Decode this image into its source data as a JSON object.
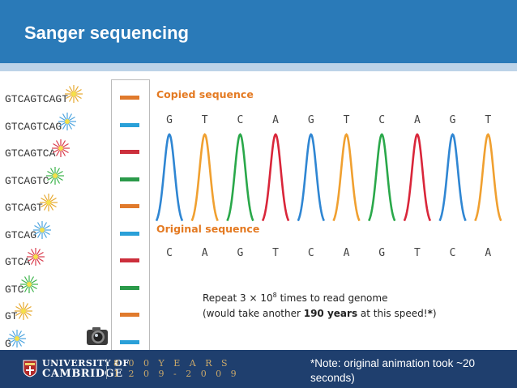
{
  "slide": {
    "title": "Sanger sequencing"
  },
  "fragments": [
    {
      "text": "GTCAGTCAGT",
      "star_color": "#e6a82e"
    },
    {
      "text": "GTCAGTCAG",
      "star_color": "#4aa3df"
    },
    {
      "text": "GTCAGTCA",
      "star_color": "#d9394a"
    },
    {
      "text": "GTCAGTC",
      "star_color": "#3bb34a"
    },
    {
      "text": "GTCAGT",
      "star_color": "#e6a82e"
    },
    {
      "text": "GTCAG",
      "star_color": "#4aa3df"
    },
    {
      "text": "GTCA",
      "star_color": "#d9394a"
    },
    {
      "text": "GTC",
      "star_color": "#3bb34a"
    },
    {
      "text": "GT",
      "star_color": "#e6a82e"
    },
    {
      "text": "G",
      "star_color": "#4aa3df"
    }
  ],
  "gel_bands": [
    "#e07a2c",
    "#2aa0d8",
    "#cc2f3c",
    "#2b9a4a",
    "#e07a2c",
    "#2aa0d8",
    "#cc2f3c",
    "#2b9a4a",
    "#e07a2c",
    "#2aa0d8"
  ],
  "copied": {
    "label": "Copied sequence",
    "bases": [
      "G",
      "T",
      "C",
      "A",
      "G",
      "T",
      "C",
      "A",
      "G",
      "T"
    ]
  },
  "original": {
    "label": "Original sequence",
    "bases": [
      "C",
      "A",
      "G",
      "T",
      "C",
      "A",
      "G",
      "T",
      "C",
      "A"
    ]
  },
  "peak_colors": {
    "G": "#2f86d3",
    "T": "#f0a030",
    "C": "#2aa84a",
    "A": "#d9263a"
  },
  "repeat_note": {
    "line1_prefix": "Repeat 3 × 10",
    "line1_exp": "8",
    "line1_suffix": " times to read genome",
    "line2_prefix": "(would take another ",
    "line2_bold": "190 years",
    "line2_mid": " at this speed!",
    "line2_star": "*",
    "line2_end": ")"
  },
  "footer": {
    "university_line1": "UNIVERSITY OF",
    "university_line2": "CAMBRIDGE",
    "years_line1": "8 0 0  Y E A R S",
    "years_line2": "1 2 0 9 - 2 0 0 9",
    "note": "*Note: original animation took ~20 seconds)"
  },
  "colors": {
    "title_bar": "#2a7ab8",
    "footer_bg": "#1f3f6e",
    "label_orange": "#e47a22"
  },
  "icons": [
    "camera-icon",
    "cambridge-shield-icon",
    "fluorescent-star-icon"
  ]
}
